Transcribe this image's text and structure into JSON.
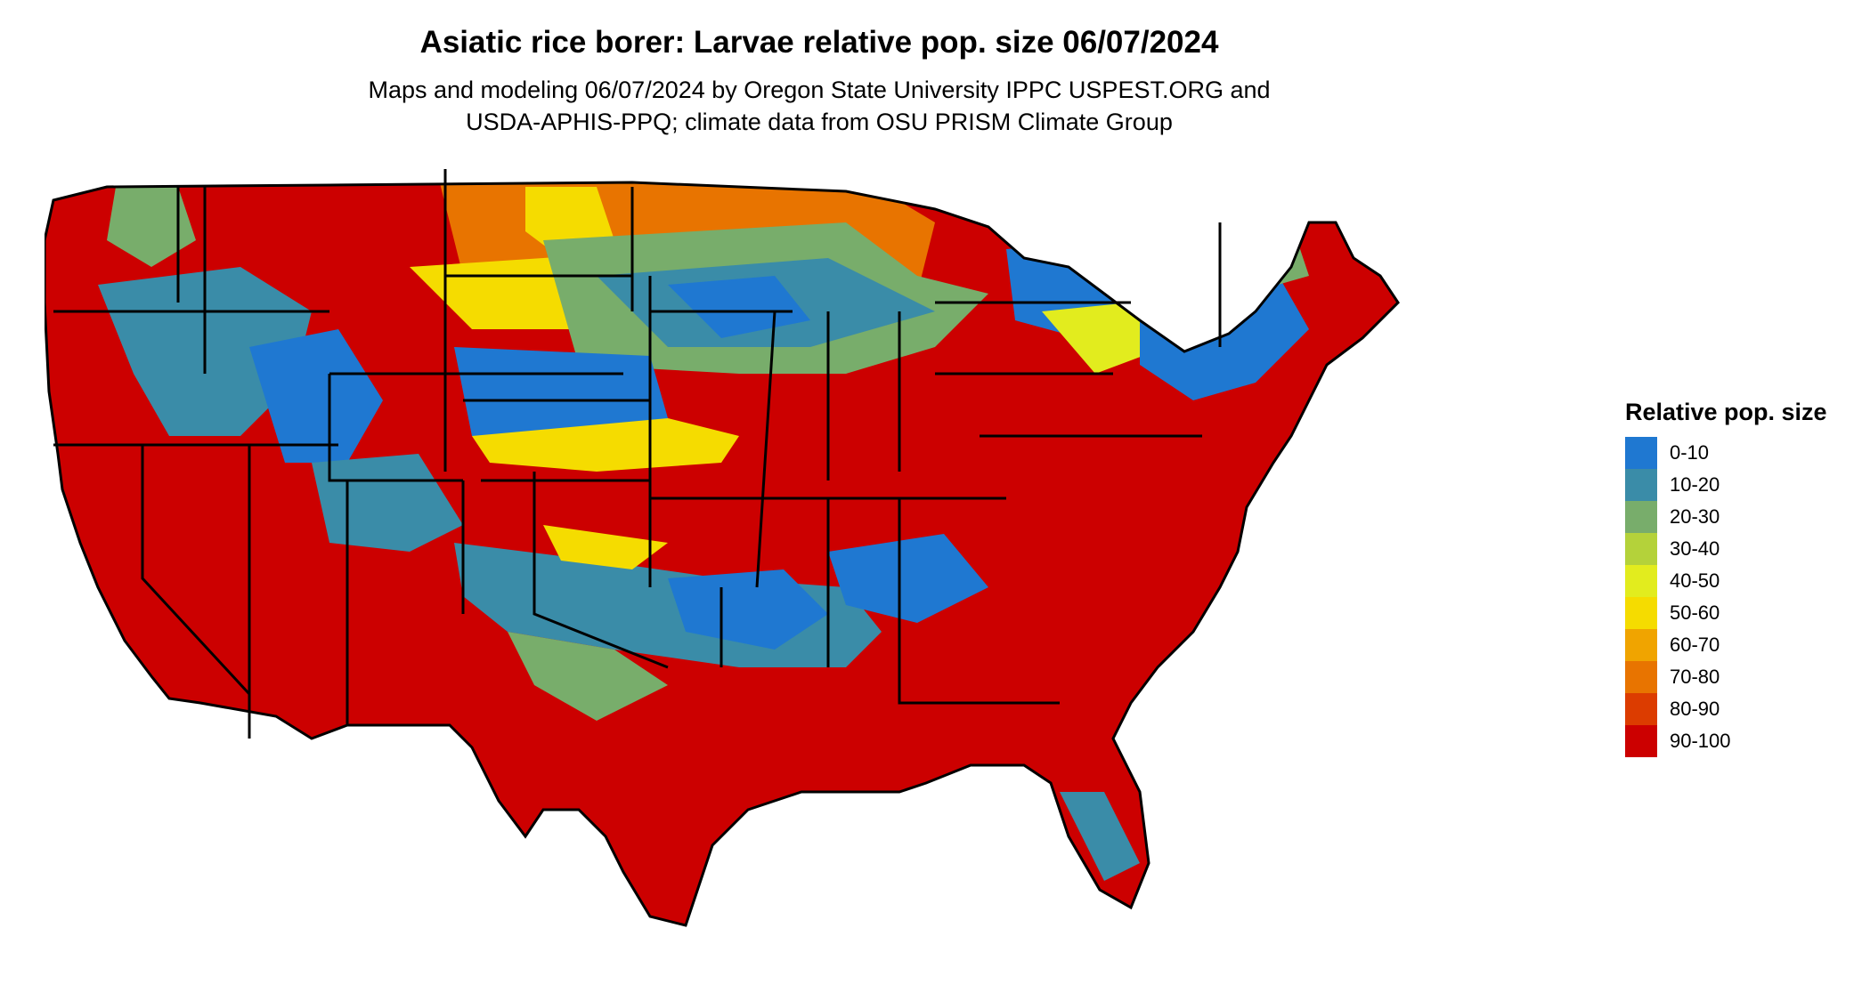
{
  "title": "Asiatic rice borer: Larvae relative pop. size 06/07/2024",
  "subtitle_line1": "Maps and modeling 06/07/2024 by Oregon State University IPPC USPEST.ORG and",
  "subtitle_line2": "USDA-APHIS-PPQ; climate data from OSU PRISM Climate Group",
  "legend": {
    "title": "Relative pop. size",
    "items": [
      {
        "label": "0-10",
        "color": "#1f78d1"
      },
      {
        "label": "10-20",
        "color": "#3a8ca8"
      },
      {
        "label": "20-30",
        "color": "#78ad6b"
      },
      {
        "label": "30-40",
        "color": "#b4d23a"
      },
      {
        "label": "40-50",
        "color": "#e2ec1e"
      },
      {
        "label": "50-60",
        "color": "#f5dc00"
      },
      {
        "label": "60-70",
        "color": "#f0a400"
      },
      {
        "label": "70-80",
        "color": "#e87400"
      },
      {
        "label": "80-90",
        "color": "#dc3c00"
      },
      {
        "label": "90-100",
        "color": "#cc0000"
      }
    ]
  }
}
